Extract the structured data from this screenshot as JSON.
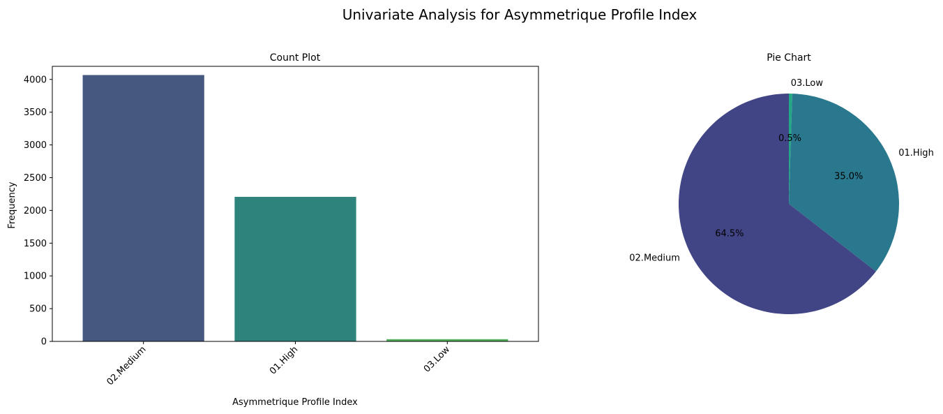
{
  "figure": {
    "suptitle": "Univariate Analysis for Asymmetrique Profile Index"
  },
  "colors": {
    "bar_02_medium": "#46587f",
    "bar_01_high": "#2e837c",
    "bar_03_low": "#52b05b",
    "pie_02_medium": "#424585",
    "pie_01_high": "#2a788e",
    "pie_03_low": "#22a884"
  },
  "chart_data": [
    {
      "type": "bar",
      "title": "Count Plot",
      "xlabel": "Asymmetrique Profile Index",
      "ylabel": "Frequency",
      "categories": [
        "02.Medium",
        "01.High",
        "03.Low"
      ],
      "values": [
        4067,
        2207,
        34
      ],
      "ylim": [
        0,
        4200
      ],
      "yticks": [
        0,
        500,
        1000,
        1500,
        2000,
        2500,
        3000,
        3500,
        4000
      ],
      "xtick_rotation": 45,
      "grid": false
    },
    {
      "type": "pie",
      "title": "Pie Chart",
      "labels": [
        "03.Low",
        "01.High",
        "02.Medium"
      ],
      "values": [
        0.5,
        35.0,
        64.5
      ],
      "autopct": [
        "0.5%",
        "35.0%",
        "64.5%"
      ],
      "startangle": 90,
      "direction": "clockwise"
    }
  ]
}
